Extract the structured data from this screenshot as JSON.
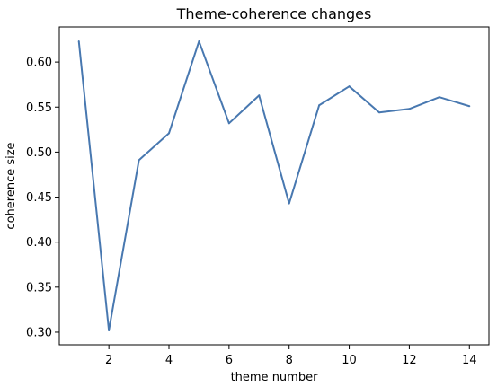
{
  "chart_data": {
    "type": "line",
    "title": "Theme-coherence changes",
    "xlabel": "theme number",
    "ylabel": "coherence size",
    "x": [
      1,
      2,
      3,
      4,
      5,
      6,
      7,
      8,
      9,
      10,
      11,
      12,
      13,
      14
    ],
    "series": [
      {
        "values": [
          0.623,
          0.302,
          0.491,
          0.521,
          0.623,
          0.532,
          0.563,
          0.443,
          0.552,
          0.573,
          0.544,
          0.548,
          0.561,
          0.551
        ]
      }
    ],
    "xlim": [
      0.35,
      14.65
    ],
    "ylim": [
      0.286,
      0.639
    ],
    "xticks": [
      2,
      4,
      6,
      8,
      10,
      12,
      14
    ],
    "yticks": [
      0.3,
      0.35,
      0.4,
      0.45,
      0.5,
      0.55,
      0.6
    ],
    "ytick_labels": [
      "0.30",
      "0.35",
      "0.40",
      "0.45",
      "0.50",
      "0.55",
      "0.60"
    ],
    "grid": false,
    "line_color": "#4878b0"
  }
}
